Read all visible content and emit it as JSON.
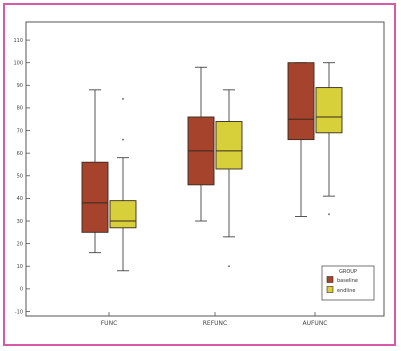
{
  "chart_data": {
    "type": "box",
    "categories": [
      "FUNC",
      "REFUNC",
      "AUFUNC"
    ],
    "y_ticks": [
      "-10",
      "0",
      "10",
      "20",
      "30",
      "40",
      "50",
      "60",
      "70",
      "80",
      "90",
      "100",
      "110"
    ],
    "ylim": [
      -12,
      118
    ],
    "grid": false,
    "legend_placement": "bottom-right",
    "legend_title": "GROUP",
    "series": [
      {
        "name": "baseline",
        "color": "#a5432c",
        "boxes": [
          {
            "min": 16,
            "q1": 25,
            "median": 38,
            "q3": 56,
            "max": 88,
            "outliers": []
          },
          {
            "min": 30,
            "q1": 46,
            "median": 61,
            "q3": 76,
            "max": 98,
            "outliers": []
          },
          {
            "min": 32,
            "q1": 66,
            "median": 75,
            "q3": 100,
            "max": 100,
            "outliers": []
          }
        ]
      },
      {
        "name": "endline",
        "color": "#d8d03a",
        "boxes": [
          {
            "min": 8,
            "q1": 27,
            "median": 30,
            "q3": 39,
            "max": 58,
            "outliers": [
              84,
              66
            ]
          },
          {
            "min": 23,
            "q1": 53,
            "median": 61,
            "q3": 74,
            "max": 88,
            "outliers": [
              10
            ]
          },
          {
            "min": 41,
            "q1": 69,
            "median": 76,
            "q3": 89,
            "max": 100,
            "outliers": [
              33
            ]
          }
        ]
      }
    ]
  }
}
